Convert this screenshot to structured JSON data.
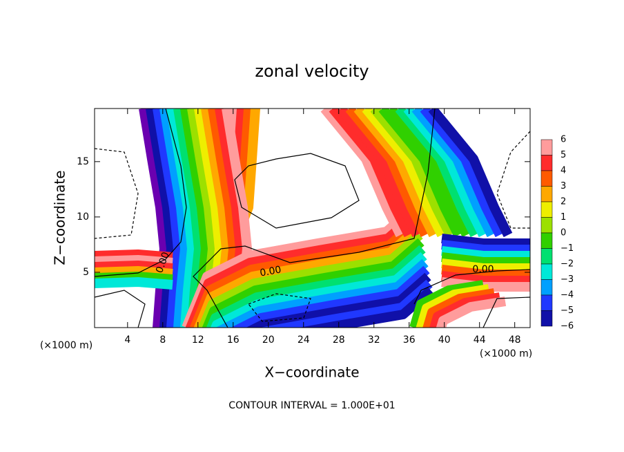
{
  "chart_data": {
    "type": "contour",
    "title": "zonal velocity",
    "x_label": "X−coordinate",
    "y_label": "Z−coordinate",
    "x_unit": "(×1000 m)",
    "y_unit": "(×1000 m)",
    "xlim": [
      0.25,
      49.75
    ],
    "ylim": [
      0,
      19.8
    ],
    "xticks": [
      4,
      8,
      12,
      16,
      20,
      24,
      28,
      32,
      36,
      40,
      44,
      48
    ],
    "yticks": [
      5,
      10,
      15
    ],
    "colorbar_ticks": [
      6,
      5,
      4,
      3,
      2,
      1,
      0,
      {
        "value": -1,
        "label": "−1"
      },
      {
        "value": -2,
        "label": "−2"
      },
      {
        "value": -3,
        "label": "−3"
      },
      {
        "value": -4,
        "label": "−4"
      },
      {
        "value": -5,
        "label": "−5"
      },
      {
        "value": -6,
        "label": "−6"
      }
    ],
    "colorbar_colors": [
      "#ff9c9c",
      "#ff2c2c",
      "#ff5a00",
      "#ffa800",
      "#eeee00",
      "#9ce000",
      "#30d000",
      "#00e070",
      "#00e8d8",
      "#00a0ff",
      "#2038ff",
      "#1010a8"
    ],
    "contour_labels": [
      "0.00",
      "0.00",
      "0.00"
    ],
    "footnote": "CONTOUR INTERVAL = 1.000E+01"
  }
}
